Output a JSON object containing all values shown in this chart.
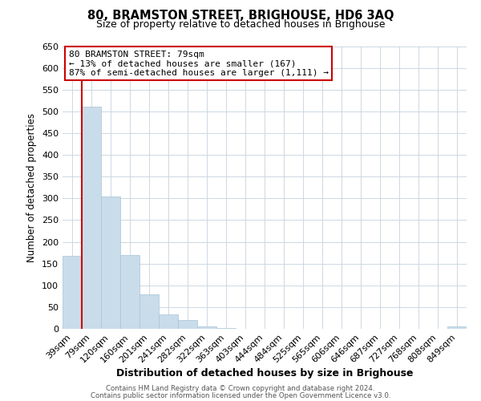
{
  "title": "80, BRAMSTON STREET, BRIGHOUSE, HD6 3AQ",
  "subtitle": "Size of property relative to detached houses in Brighouse",
  "xlabel": "Distribution of detached houses by size in Brighouse",
  "ylabel": "Number of detached properties",
  "bar_labels": [
    "39sqm",
    "79sqm",
    "120sqm",
    "160sqm",
    "201sqm",
    "241sqm",
    "282sqm",
    "322sqm",
    "363sqm",
    "403sqm",
    "444sqm",
    "484sqm",
    "525sqm",
    "565sqm",
    "606sqm",
    "646sqm",
    "687sqm",
    "727sqm",
    "768sqm",
    "808sqm",
    "849sqm"
  ],
  "bar_values": [
    167,
    511,
    305,
    169,
    79,
    33,
    20,
    5,
    1,
    0,
    0,
    0,
    0,
    0,
    0,
    0,
    0,
    0,
    0,
    0,
    5
  ],
  "bar_color": "#c9dcea",
  "bar_edge_color": "#a8c4d8",
  "highlight_line_color": "#cc0000",
  "ylim": [
    0,
    650
  ],
  "yticks": [
    0,
    50,
    100,
    150,
    200,
    250,
    300,
    350,
    400,
    450,
    500,
    550,
    600,
    650
  ],
  "annotation_title": "80 BRAMSTON STREET: 79sqm",
  "annotation_line1": "← 13% of detached houses are smaller (167)",
  "annotation_line2": "87% of semi-detached houses are larger (1,111) →",
  "annotation_box_color": "#ffffff",
  "annotation_box_edge": "#cc0000",
  "footer1": "Contains HM Land Registry data © Crown copyright and database right 2024.",
  "footer2": "Contains public sector information licensed under the Open Government Licence v3.0.",
  "bg_color": "#ffffff",
  "grid_color": "#cdd8e2"
}
